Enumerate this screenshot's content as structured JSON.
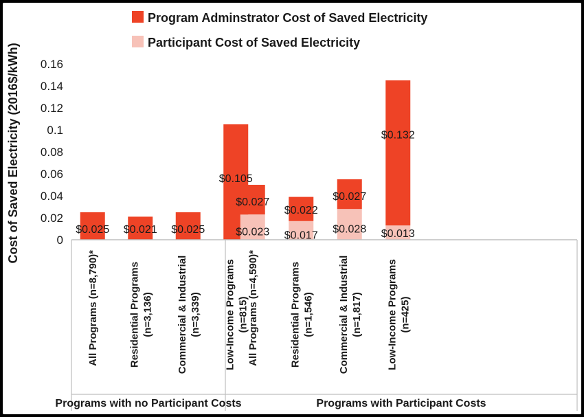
{
  "chart_data": {
    "type": "bar",
    "stacked": true,
    "ylabel": "Cost of Saved Electricity (2016$/kWh)",
    "ylim": [
      0,
      0.16
    ],
    "yticks": [
      "0",
      "0.02",
      "0.04",
      "0.06",
      "0.08",
      "0.1",
      "0.12",
      "0.14",
      "0.16"
    ],
    "ytick_values": [
      0,
      0.02,
      0.04,
      0.06,
      0.08,
      0.1,
      0.12,
      0.14,
      0.16
    ],
    "legend_position": "top",
    "grid": false,
    "series": [
      {
        "name": "Program Adminstrator Cost of Saved Electricity",
        "color": "#EE4326"
      },
      {
        "name": "Participant Cost of Saved Electricity",
        "color": "#F7C2B8"
      }
    ],
    "groups": [
      {
        "label": "Programs with no Participant Costs",
        "categories": [
          {
            "line1": "All Programs (n=8,790)*",
            "line2": "",
            "admin": 0.025,
            "participant": 0,
            "admin_label": "$0.025",
            "participant_label": ""
          },
          {
            "line1": "Residential Programs",
            "line2": "(n=3,136)",
            "admin": 0.021,
            "participant": 0,
            "admin_label": "$0.021",
            "participant_label": ""
          },
          {
            "line1": "Commercial & Industrial",
            "line2": "(n=3,339)",
            "admin": 0.025,
            "participant": 0,
            "admin_label": "$0.025",
            "participant_label": ""
          },
          {
            "line1": "Low-Income Programs",
            "line2": "(n=815)",
            "admin": 0.105,
            "participant": 0,
            "admin_label": "$0.105",
            "participant_label": ""
          }
        ]
      },
      {
        "label": "Programs with Participant Costs",
        "categories": [
          {
            "line1": "All Programs (n=4,590)*",
            "line2": "",
            "admin": 0.027,
            "participant": 0.023,
            "admin_label": "$0.027",
            "participant_label": "$0.023"
          },
          {
            "line1": "Residential Programs",
            "line2": "(n=1,546)",
            "admin": 0.022,
            "participant": 0.017,
            "admin_label": "$0.022",
            "participant_label": "$0.017"
          },
          {
            "line1": "Commercial & Industrial",
            "line2": "(n=1,817)",
            "admin": 0.027,
            "participant": 0.028,
            "admin_label": "$0.027",
            "participant_label": "$0.028"
          },
          {
            "line1": "Low-Income Programs",
            "line2": "(n=425)",
            "admin": 0.132,
            "participant": 0.013,
            "admin_label": "$0.132",
            "participant_label": "$0.013"
          }
        ]
      }
    ]
  }
}
